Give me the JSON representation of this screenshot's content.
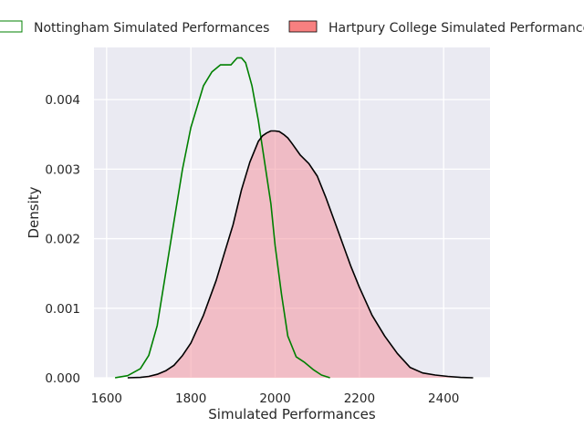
{
  "chart_data": {
    "type": "area",
    "title": "",
    "xlabel": "Simulated Performances",
    "ylabel": "Density",
    "xlim": [
      1570,
      2510
    ],
    "ylim": [
      0,
      0.00475
    ],
    "xticks": [
      1600,
      1800,
      2000,
      2200,
      2400
    ],
    "xtick_labels": [
      "1600",
      "1800",
      "2000",
      "2200",
      "2400"
    ],
    "yticks": [
      0,
      0.001,
      0.002,
      0.003,
      0.004
    ],
    "ytick_labels": [
      "0.000",
      "0.001",
      "0.002",
      "0.003",
      "0.004"
    ],
    "grid": true,
    "legend_position": "top",
    "series": [
      {
        "name": "Nottingham Simulated Performances",
        "color": "#008000",
        "fill": "none",
        "x": [
          1620,
          1650,
          1680,
          1700,
          1720,
          1740,
          1760,
          1780,
          1800,
          1815,
          1830,
          1850,
          1870,
          1880,
          1895,
          1910,
          1920,
          1930,
          1945,
          1960,
          1975,
          1990,
          2000,
          2015,
          2030,
          2050,
          2070,
          2090,
          2110,
          2130
        ],
        "y": [
          0.0,
          3e-05,
          0.00013,
          0.00032,
          0.00075,
          0.0015,
          0.00225,
          0.003,
          0.0036,
          0.0039,
          0.0042,
          0.0044,
          0.0045,
          0.0045,
          0.0045,
          0.0046,
          0.0046,
          0.00453,
          0.0042,
          0.0037,
          0.0031,
          0.0025,
          0.0019,
          0.0012,
          0.0006,
          0.0003,
          0.00022,
          0.00012,
          4e-05,
          0.0
        ]
      },
      {
        "name": "Hartpury College Simulated Performances",
        "color": "#000000",
        "fill": "#f48b97",
        "x": [
          1650,
          1680,
          1700,
          1720,
          1740,
          1760,
          1780,
          1800,
          1830,
          1860,
          1880,
          1900,
          1920,
          1940,
          1960,
          1970,
          1980,
          1990,
          2000,
          2010,
          2020,
          2030,
          2040,
          2060,
          2080,
          2100,
          2120,
          2150,
          2180,
          2200,
          2230,
          2260,
          2290,
          2320,
          2350,
          2380,
          2410,
          2440,
          2470
        ],
        "y": [
          0.0,
          5e-06,
          2e-05,
          5e-05,
          0.0001,
          0.00018,
          0.00032,
          0.0005,
          0.0009,
          0.0014,
          0.0018,
          0.0022,
          0.0027,
          0.0031,
          0.0034,
          0.00348,
          0.00352,
          0.00355,
          0.00355,
          0.00354,
          0.0035,
          0.00345,
          0.00337,
          0.0032,
          0.00308,
          0.0029,
          0.0026,
          0.0021,
          0.0016,
          0.0013,
          0.0009,
          0.0006,
          0.00035,
          0.00015,
          7e-05,
          4e-05,
          2e-05,
          5e-06,
          0.0
        ]
      }
    ]
  }
}
